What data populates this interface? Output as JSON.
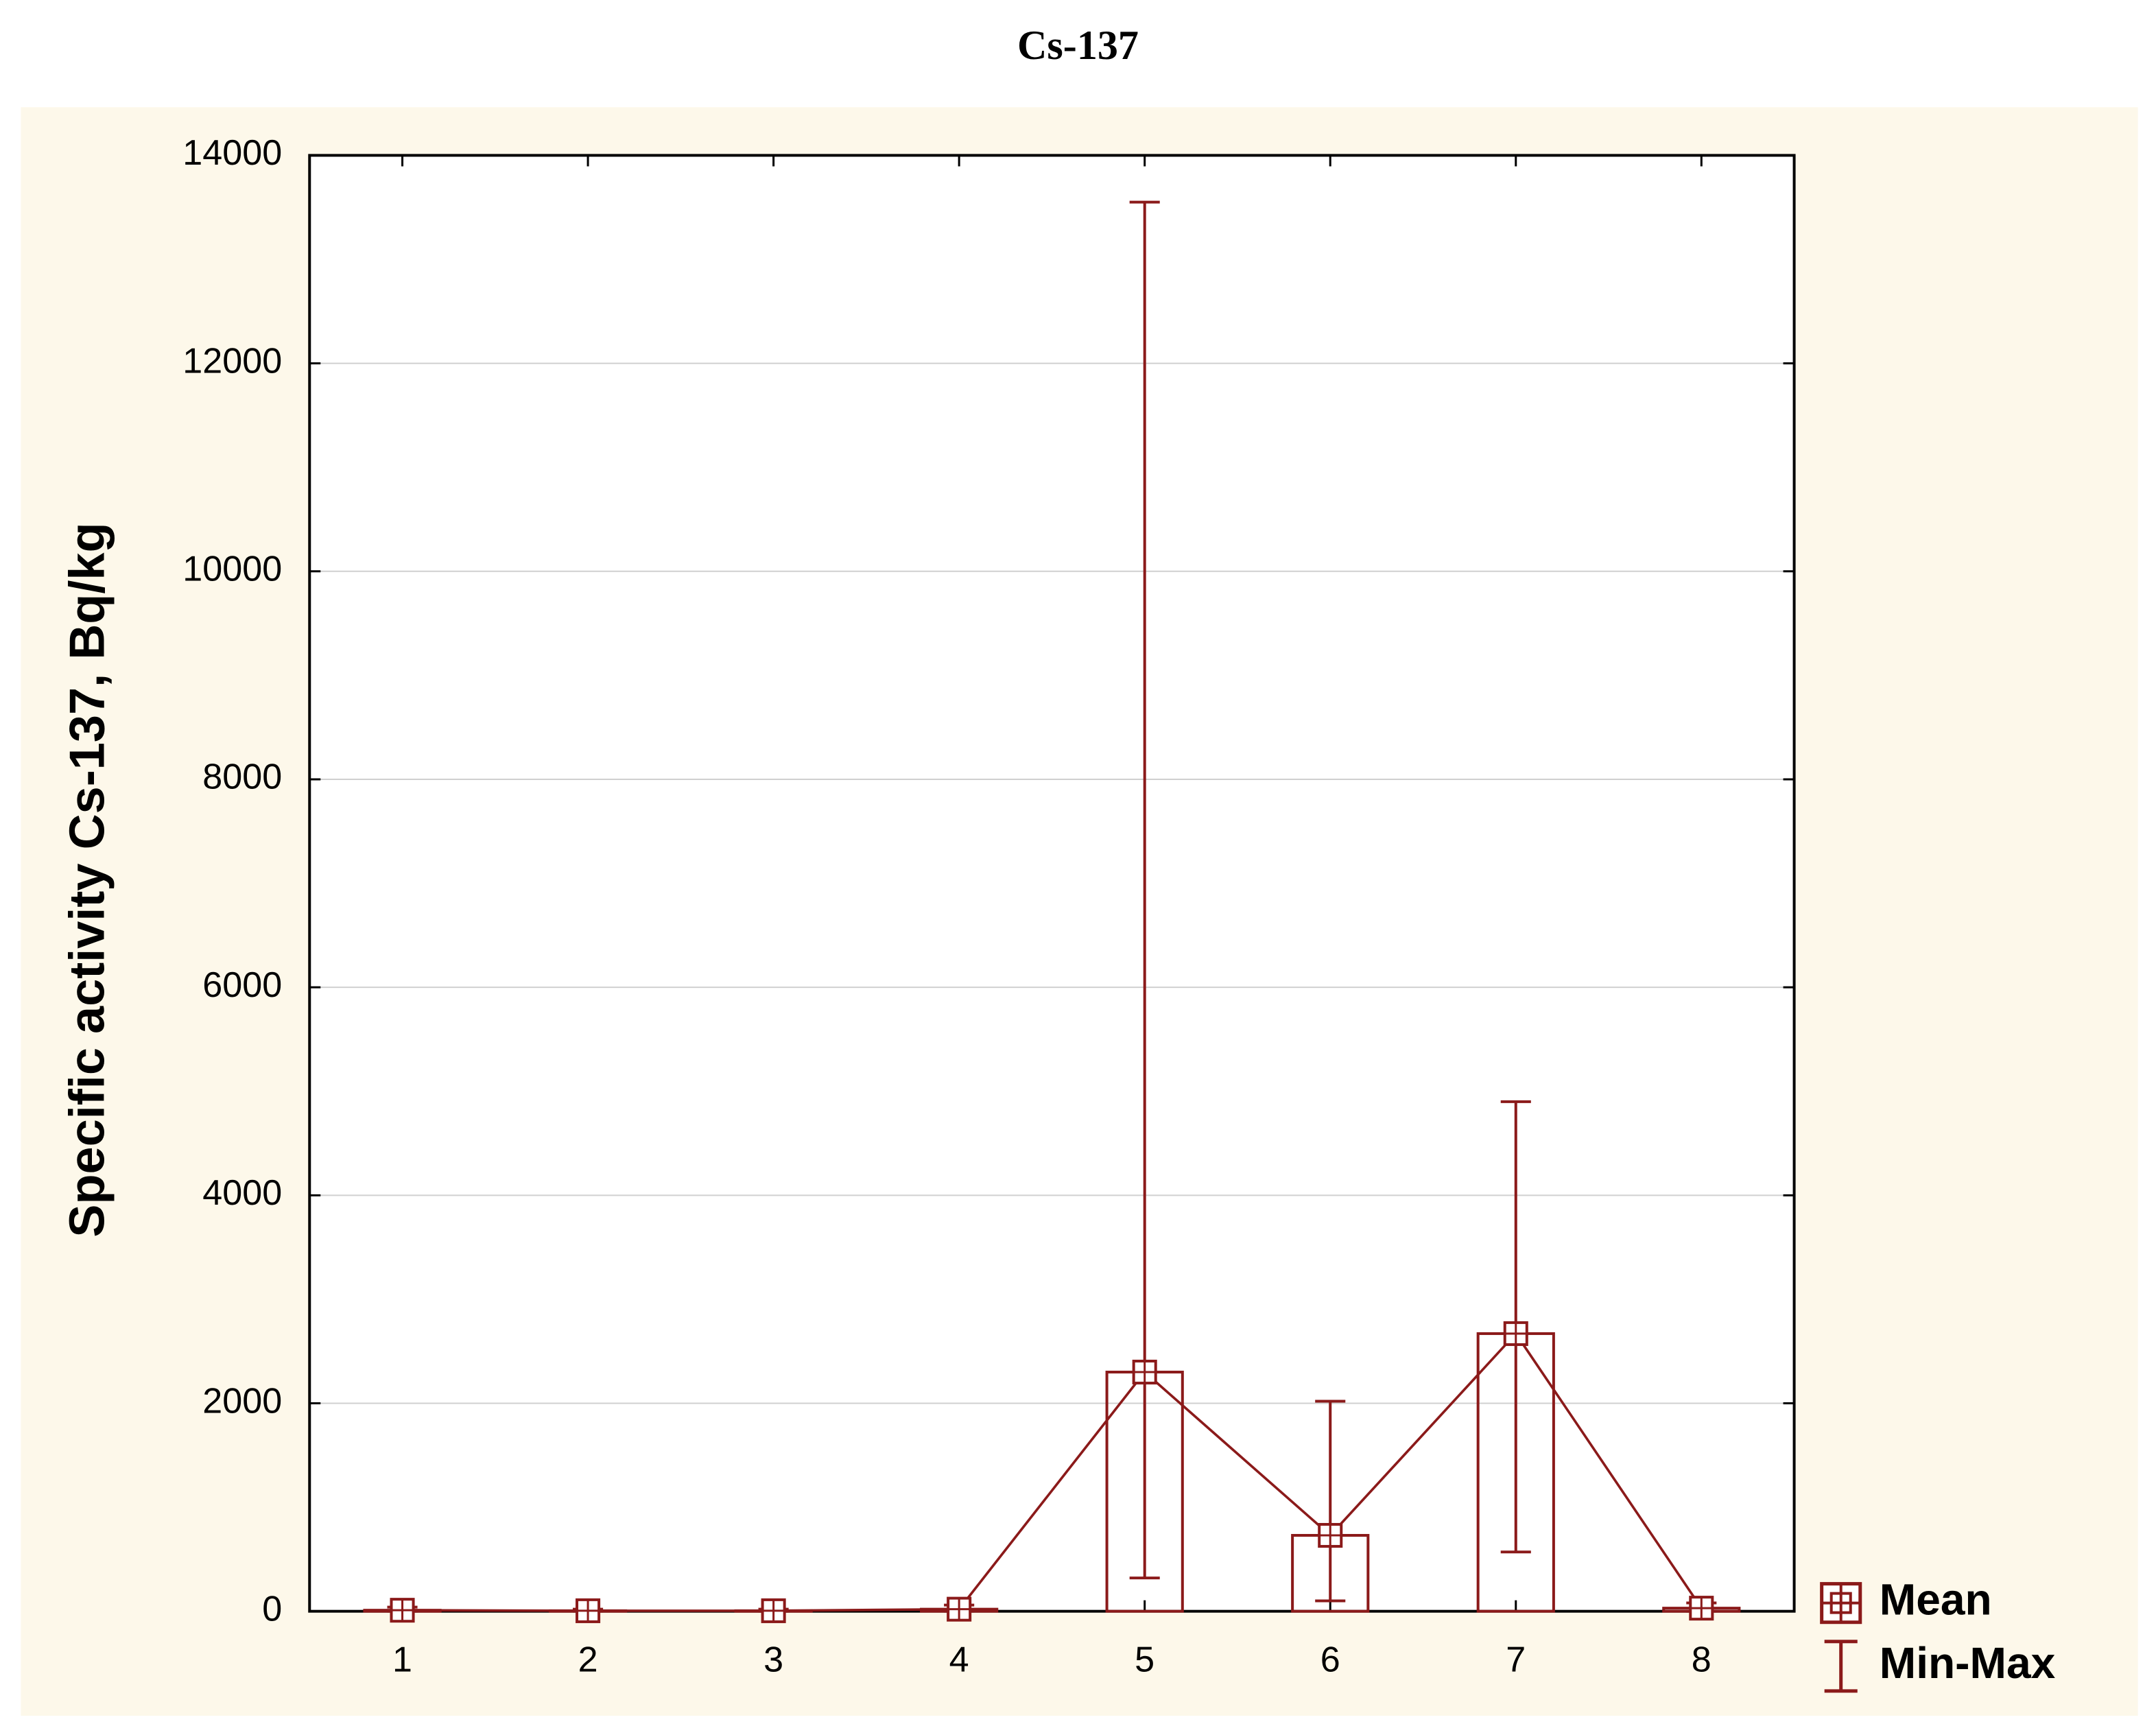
{
  "chart_data": {
    "type": "bar",
    "title": "Cs-137",
    "y_label": "Specific activity Cs-137, Bq/kg",
    "categories": [
      "1",
      "2",
      "3",
      "4",
      "5",
      "6",
      "7",
      "8"
    ],
    "series": [
      {
        "name": "Mean",
        "color": "#8b1a1a",
        "values": [
          10,
          5,
          5,
          20,
          2300,
          730,
          2670,
          30
        ]
      },
      {
        "name": "Min-Max",
        "color": "#8b1a1a",
        "min": [
          0,
          0,
          0,
          0,
          320,
          100,
          570,
          0
        ],
        "max": [
          40,
          20,
          20,
          60,
          13550,
          2020,
          4900,
          80
        ]
      }
    ],
    "ylim": [
      0,
      14000
    ],
    "yticks": [
      0,
      2000,
      4000,
      6000,
      8000,
      10000,
      12000,
      14000
    ],
    "grid": true,
    "legend": "bottom-right"
  }
}
